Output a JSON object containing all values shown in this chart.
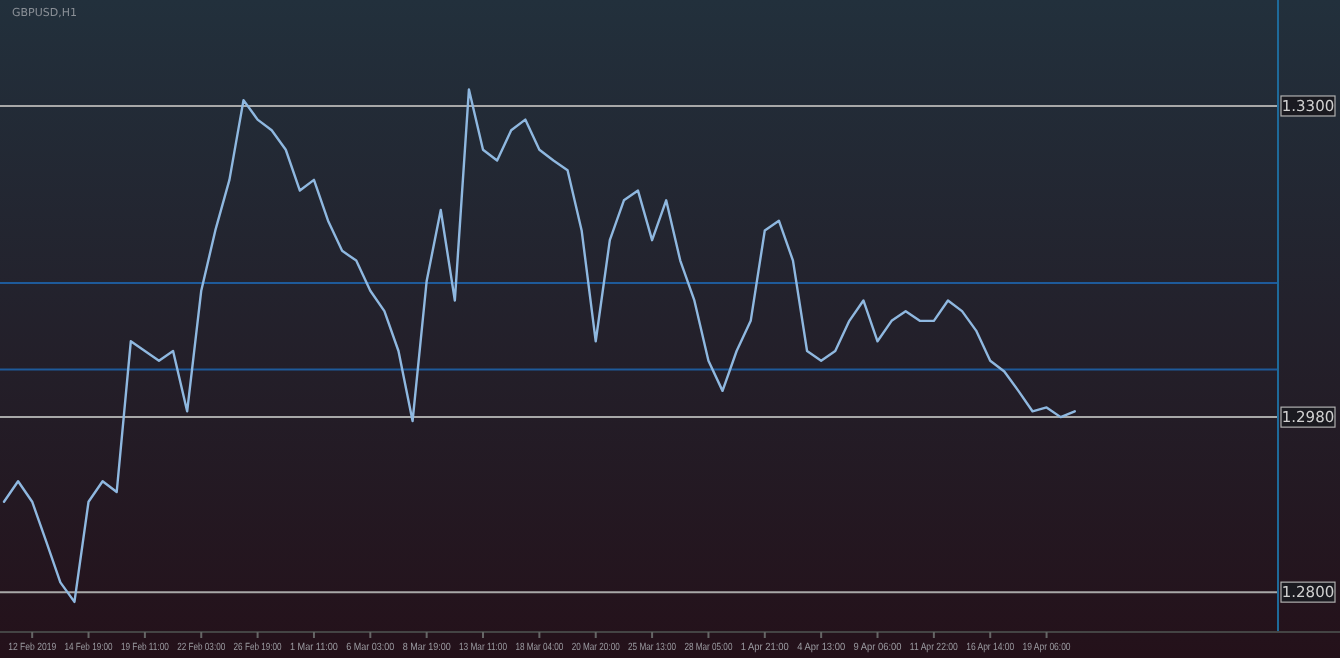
{
  "chart_data": {
    "type": "line",
    "title": "GBPUSD,H1",
    "categories": [
      null,
      null,
      "12 Feb 2019",
      null,
      null,
      null,
      "14 Feb 19:00",
      null,
      null,
      null,
      "19 Feb 11:00",
      null,
      null,
      null,
      "22 Feb 03:00",
      null,
      null,
      null,
      "26 Feb 19:00",
      null,
      null,
      null,
      "1 Mar 11:00",
      null,
      null,
      null,
      "6 Mar 03:00",
      null,
      null,
      null,
      "8 Mar 19:00",
      null,
      null,
      null,
      "13 Mar 11:00",
      null,
      null,
      null,
      "18 Mar 04:00",
      null,
      null,
      null,
      "20 Mar 20:00",
      null,
      null,
      null,
      "25 Mar 13:00",
      null,
      null,
      null,
      "28 Mar 05:00",
      null,
      null,
      null,
      "1 Apr 21:00",
      null,
      null,
      null,
      "4 Apr 13:00",
      null,
      null,
      null,
      "9 Apr 06:00",
      null,
      null,
      null,
      "11 Apr 22:00",
      null,
      null,
      null,
      "16 Apr 14:00",
      null,
      null,
      null,
      "19 Apr 06:00",
      null,
      null,
      null,
      null,
      null,
      null,
      null,
      null,
      null,
      null,
      null,
      null,
      null,
      null,
      null,
      null
    ],
    "series": [
      {
        "color": "#8fb8e0",
        "values": [
          1.2893,
          1.2914,
          1.2893,
          1.2852,
          1.281,
          1.279,
          1.2893,
          1.2914,
          1.2903,
          1.3058,
          1.3048,
          1.3038,
          1.3048,
          1.2986,
          1.311,
          1.3172,
          1.3224,
          1.3306,
          1.3286,
          1.3275,
          1.3255,
          1.3213,
          1.3224,
          1.3182,
          1.3151,
          1.3141,
          1.311,
          1.3089,
          1.3048,
          1.2976,
          1.312,
          1.3193,
          1.31,
          1.3317,
          1.3255,
          1.3244,
          1.3275,
          1.3286,
          1.3255,
          1.3244,
          1.3234,
          1.3172,
          1.3058,
          1.3162,
          1.3203,
          1.3213,
          1.3162,
          1.3203,
          1.3141,
          1.31,
          1.3038,
          1.3007,
          1.3048,
          1.3079,
          1.3172,
          1.3182,
          1.3141,
          1.3048,
          1.3038,
          1.3048,
          1.3079,
          1.31,
          1.3058,
          1.3079,
          1.3089,
          1.3079,
          1.3079,
          1.31,
          1.3089,
          1.3069,
          1.3038,
          1.3027,
          1.3007,
          1.2986,
          1.299,
          1.298,
          1.2986,
          null,
          null,
          null,
          null,
          null,
          null,
          null,
          null,
          null,
          null,
          null,
          null,
          null,
          null
        ]
      }
    ],
    "ylim": [
      1.2759,
      1.3409
    ],
    "yticks": [
      {
        "value": 1.33,
        "label": "1.3300"
      },
      {
        "value": 1.298,
        "label": "1.2980"
      },
      {
        "value": 1.28,
        "label": "1.2800"
      }
    ],
    "ref_lines": [
      {
        "axis": "y",
        "value": 1.33,
        "color": "#a8a8a8"
      },
      {
        "axis": "y",
        "value": 1.298,
        "color": "#a8a8a8"
      },
      {
        "axis": "y",
        "value": 1.28,
        "color": "#a8a8a8"
      },
      {
        "axis": "y",
        "value": 1.3118,
        "color": "#1e5a9a"
      },
      {
        "axis": "y",
        "value": 1.3029,
        "color": "#1e5a9a"
      }
    ],
    "marker": "none",
    "line_style": "solid"
  }
}
